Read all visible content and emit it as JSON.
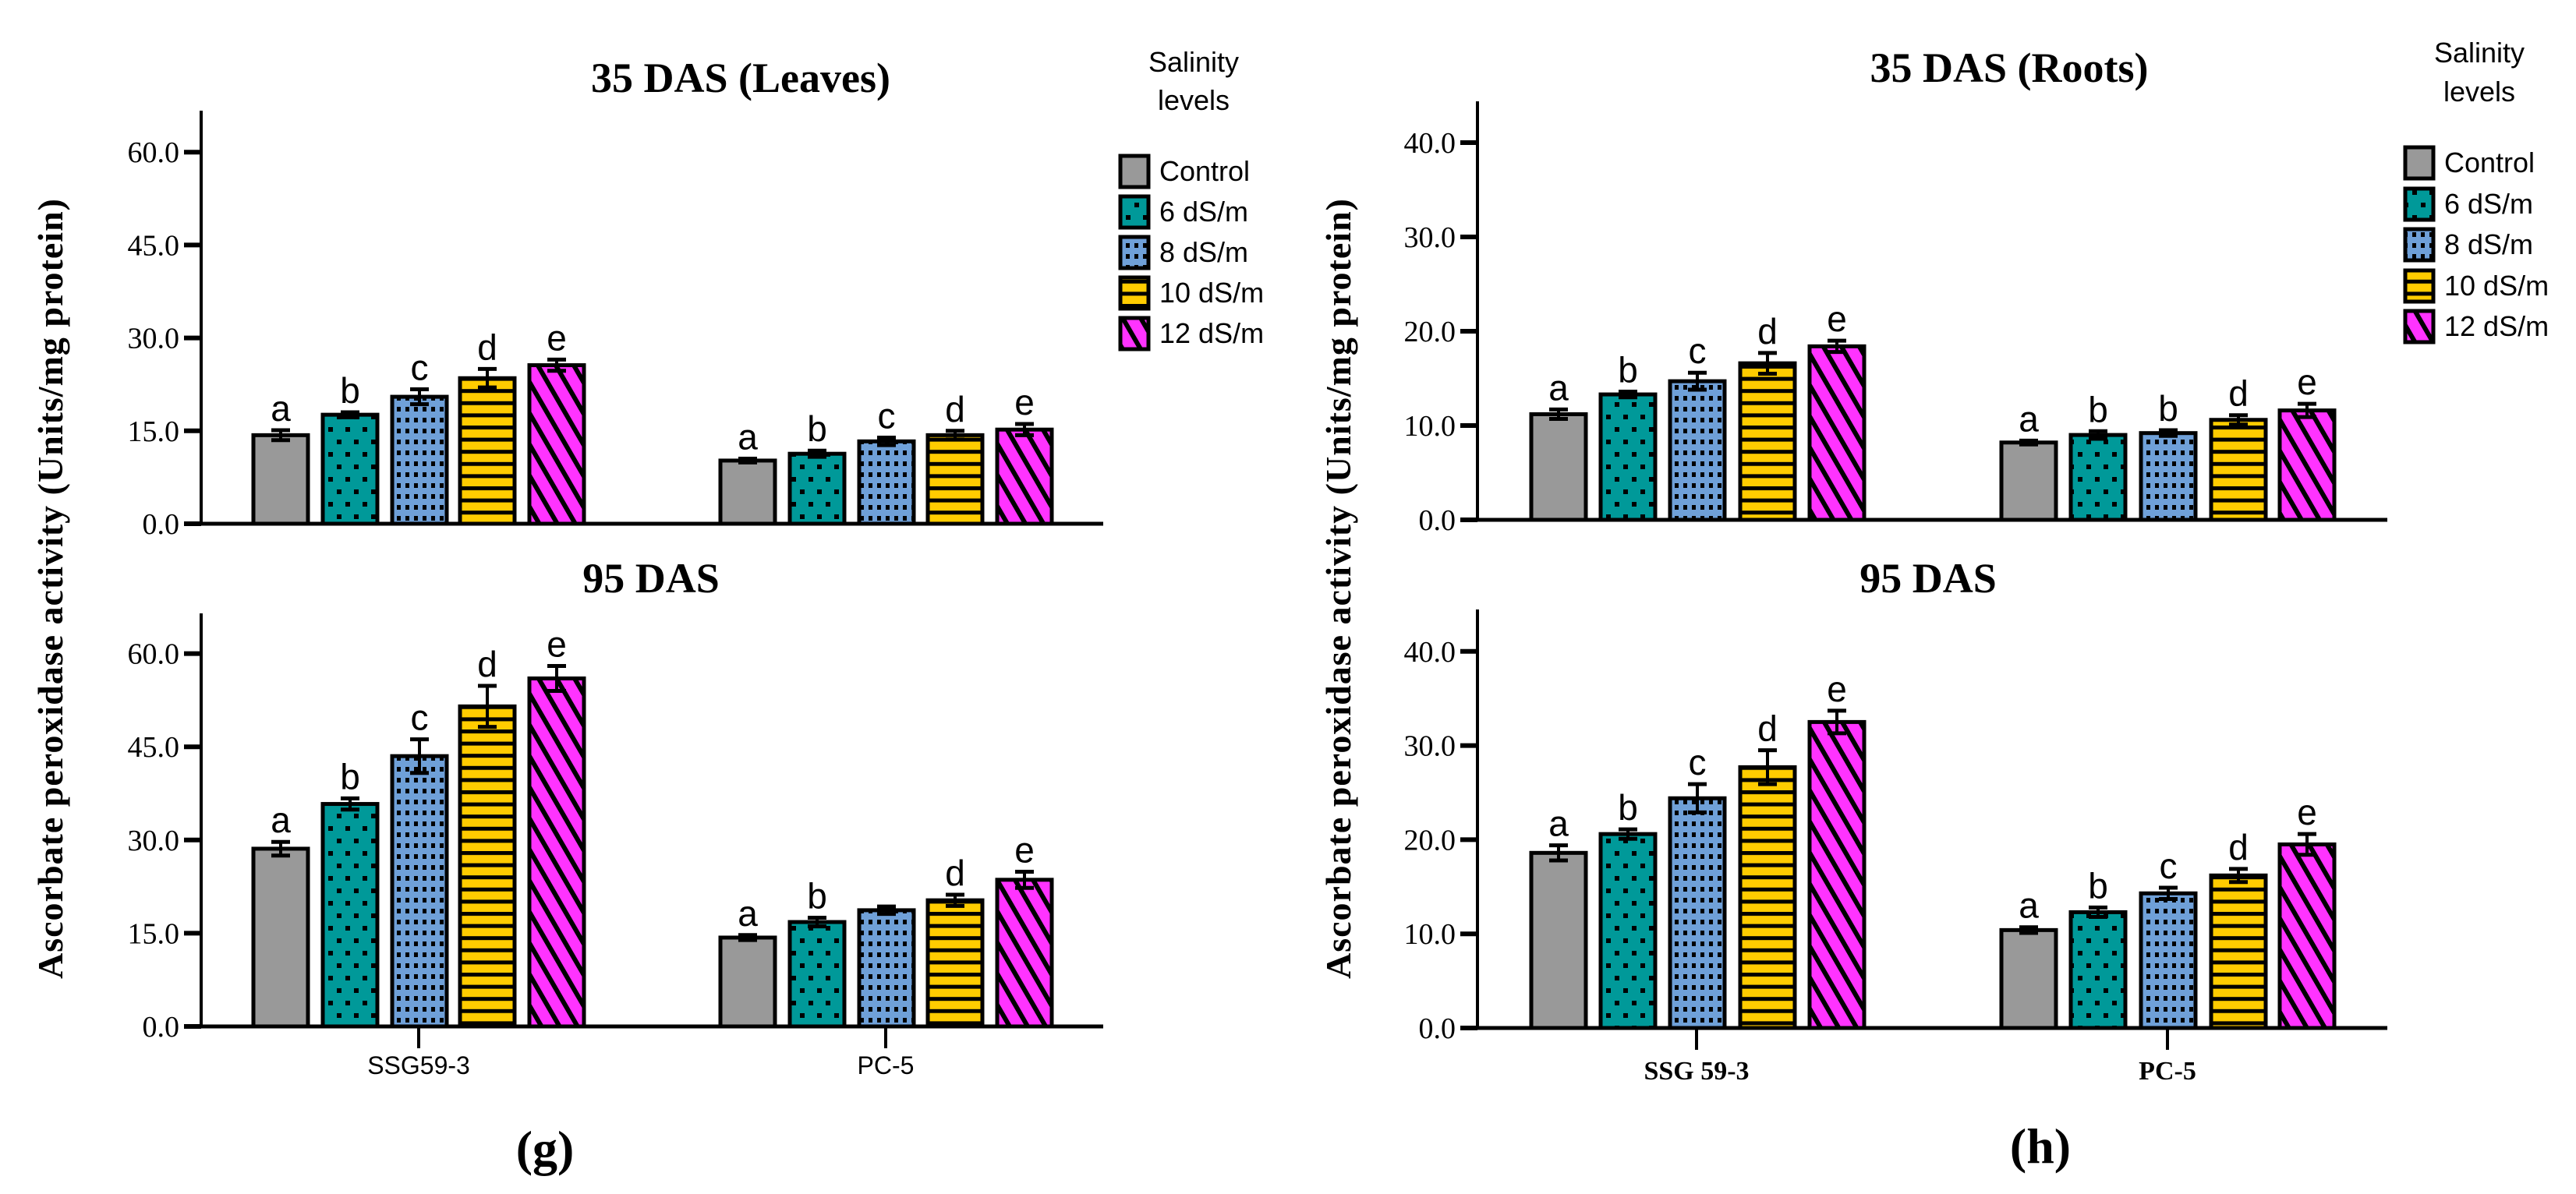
{
  "legend": {
    "title_line1": "Salinity",
    "title_line2": "levels",
    "items": [
      "Control",
      "6 dS/m",
      "8 dS/m",
      "10 dS/m",
      "12 dS/m"
    ]
  },
  "colors": {
    "Control": "#999999",
    "6 dS/m": "#009999",
    "8 dS/m": "#6fa0d8",
    "10 dS/m": "#ffcc00",
    "12 dS/m": "#ff33ff",
    "pattern": "#000000"
  },
  "chart_data": [
    {
      "panel_label": "(g)",
      "type": "bar",
      "ylabel": "Ascorbate peroxidase activity (Units/mg protein)",
      "categories": [
        "SSG59-3",
        "PC-5"
      ],
      "series_names": [
        "Control",
        "6 dS/m",
        "8 dS/m",
        "10 dS/m",
        "12 dS/m"
      ],
      "subplots": [
        {
          "title": "35 DAS  (Leaves)",
          "ylim": [
            0,
            66
          ],
          "yticks": [
            0,
            15,
            30,
            45,
            60
          ],
          "ytick_labels": [
            "0.0",
            "15.0",
            "30.0",
            "45.0",
            "60.0"
          ],
          "groups": [
            {
              "category": "SSG59-3",
              "values": [
                14.3,
                17.6,
                20.5,
                23.5,
                25.6
              ],
              "errors": [
                0.8,
                0.4,
                1.2,
                1.5,
                0.9
              ],
              "letters": [
                "a",
                "b",
                "c",
                "d",
                "e"
              ]
            },
            {
              "category": "PC-5",
              "values": [
                10.2,
                11.3,
                13.3,
                14.3,
                15.2
              ],
              "errors": [
                0.3,
                0.5,
                0.6,
                0.7,
                0.9
              ],
              "letters": [
                "a",
                "b",
                "c",
                "d",
                "e"
              ]
            }
          ]
        },
        {
          "title": "95 DAS",
          "ylim": [
            0,
            66
          ],
          "yticks": [
            0,
            15,
            30,
            45,
            60
          ],
          "ytick_labels": [
            "0.0",
            "15.0",
            "30.0",
            "45.0",
            "60.0"
          ],
          "groups": [
            {
              "category": "SSG59-3",
              "values": [
                28.6,
                35.8,
                43.5,
                51.5,
                56.0
              ],
              "errors": [
                1.1,
                0.9,
                2.7,
                3.3,
                2.0
              ],
              "letters": [
                "a",
                "b",
                "c",
                "d",
                "e"
              ]
            },
            {
              "category": "PC-5",
              "values": [
                14.3,
                16.8,
                18.7,
                20.3,
                23.6
              ],
              "errors": [
                0.4,
                0.7,
                0.6,
                0.9,
                1.3
              ],
              "letters": [
                "a",
                "b",
                "",
                "d",
                "e"
              ]
            }
          ]
        }
      ]
    },
    {
      "panel_label": "(h)",
      "type": "bar",
      "ylabel": "Ascorbate peroxidase activity (Units/mg protein)",
      "categories": [
        "SSG 59-3",
        "PC-5"
      ],
      "series_names": [
        "Control",
        "6 dS/m",
        "8 dS/m",
        "10 dS/m",
        "12 dS/m"
      ],
      "subplots": [
        {
          "title": "35 DAS (Roots)",
          "ylim": [
            0,
            44
          ],
          "yticks": [
            0,
            10,
            20,
            30,
            40
          ],
          "ytick_labels": [
            "0.0",
            "10.0",
            "20.0",
            "30.0",
            "40.0"
          ],
          "groups": [
            {
              "category": "SSG 59-3",
              "values": [
                11.2,
                13.3,
                14.7,
                16.6,
                18.4
              ],
              "errors": [
                0.5,
                0.3,
                0.9,
                1.1,
                0.6
              ],
              "letters": [
                "a",
                "b",
                "c",
                "d",
                "e"
              ]
            },
            {
              "category": "PC-5",
              "values": [
                8.2,
                9.0,
                9.2,
                10.6,
                11.6
              ],
              "errors": [
                0.2,
                0.4,
                0.3,
                0.5,
                0.7
              ],
              "letters": [
                "a",
                "b",
                "b",
                "d",
                "e"
              ]
            }
          ]
        },
        {
          "title": "95 DAS",
          "ylim": [
            0,
            44
          ],
          "yticks": [
            0,
            10,
            20,
            30,
            40
          ],
          "ytick_labels": [
            "0.0",
            "10.0",
            "20.0",
            "30.0",
            "40.0"
          ],
          "groups": [
            {
              "category": "SSG 59-3",
              "values": [
                18.6,
                20.6,
                24.4,
                27.7,
                32.5
              ],
              "errors": [
                0.8,
                0.5,
                1.5,
                1.8,
                1.2
              ],
              "letters": [
                "a",
                "b",
                "c",
                "d",
                "e"
              ]
            },
            {
              "category": "PC-5",
              "values": [
                10.4,
                12.3,
                14.3,
                16.2,
                19.5
              ],
              "errors": [
                0.3,
                0.5,
                0.6,
                0.7,
                1.1
              ],
              "letters": [
                "a",
                "b",
                "c",
                "d",
                "e"
              ]
            }
          ]
        }
      ]
    }
  ]
}
